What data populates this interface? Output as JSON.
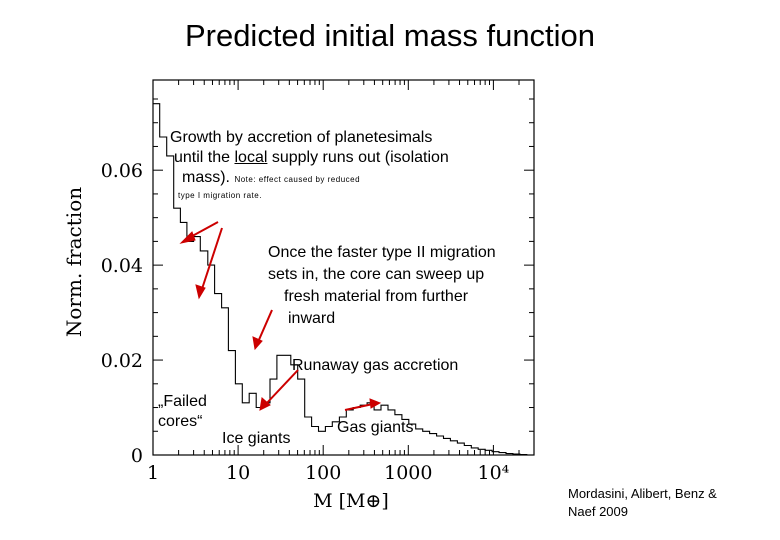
{
  "title": "Predicted initial mass function",
  "annotations": {
    "isolation_line1": "Growth by accretion of planetesimals",
    "isolation_line2_pre": "until the ",
    "isolation_line2_ul": "local",
    "isolation_line2_post": " supply runs out (isolation",
    "isolation_line3": "mass).",
    "isolation_note_a": "Note: effect caused by reduced",
    "isolation_note_b": "type I migration rate.",
    "typeII_line1": "Once the faster type II migration",
    "typeII_line2": "sets in, the core can sweep up",
    "typeII_line3": "fresh material from further",
    "typeII_line4": "inward",
    "runaway": "Runaway gas accretion",
    "failed_line1": "„Failed",
    "failed_line2": "cores“",
    "ice_giants": "Ice giants",
    "gas_giants": "Gas giants"
  },
  "credit_line1": "Mordasini, Alibert, Benz &",
  "credit_line2": "Naef 2009",
  "colors": {
    "arrow": "#cc0000",
    "line": "#000000"
  },
  "chart_data": {
    "type": "line",
    "xscale": "log",
    "xlim": [
      1,
      30000
    ],
    "ylim": [
      0,
      0.079
    ],
    "xlabel": "M  [M⊕]",
    "ylabel": "Norm.  fraction",
    "xticks": [
      {
        "value": 1,
        "label": "1"
      },
      {
        "value": 10,
        "label": "10"
      },
      {
        "value": 100,
        "label": "100"
      },
      {
        "value": 1000,
        "label": "1000"
      },
      {
        "value": 10000,
        "label": "10⁴"
      }
    ],
    "yticks": [
      {
        "value": 0,
        "label": "0"
      },
      {
        "value": 0.02,
        "label": "0.02"
      },
      {
        "value": 0.04,
        "label": "0.04"
      },
      {
        "value": 0.06,
        "label": "0.06"
      }
    ],
    "series": [
      {
        "x": [
          1.0,
          1.2,
          1.45,
          1.75,
          2.1,
          2.5,
          3.0,
          3.6,
          4.4,
          5.3,
          6.4,
          7.7,
          9.3,
          11.2,
          13.5,
          16.3,
          19.6,
          23.7,
          28.6,
          34.5,
          41.6,
          50.2,
          60.6,
          73,
          88,
          106,
          128,
          155,
          187,
          225,
          272,
          328,
          396,
          478,
          577,
          696,
          840,
          1013,
          1222,
          1475,
          1780,
          2148,
          2592,
          3128,
          3774,
          4554,
          5495,
          6631,
          8001,
          9655,
          11651,
          14059,
          16964,
          20470
        ],
        "y": [
          0.074,
          0.067,
          0.063,
          0.052,
          0.049,
          0.045,
          0.046,
          0.043,
          0.04,
          0.034,
          0.031,
          0.022,
          0.015,
          0.011,
          0.013,
          0.01,
          0.011,
          0.016,
          0.021,
          0.021,
          0.019,
          0.016,
          0.008,
          0.006,
          0.005,
          0.006,
          0.007,
          0.008,
          0.0095,
          0.01,
          0.0105,
          0.011,
          0.0095,
          0.0105,
          0.0095,
          0.0085,
          0.0075,
          0.0065,
          0.0055,
          0.005,
          0.0045,
          0.004,
          0.0035,
          0.003,
          0.0025,
          0.002,
          0.0015,
          0.0012,
          0.001,
          0.0007,
          0.0005,
          0.0003,
          0.0002,
          0.0001
        ]
      }
    ]
  }
}
